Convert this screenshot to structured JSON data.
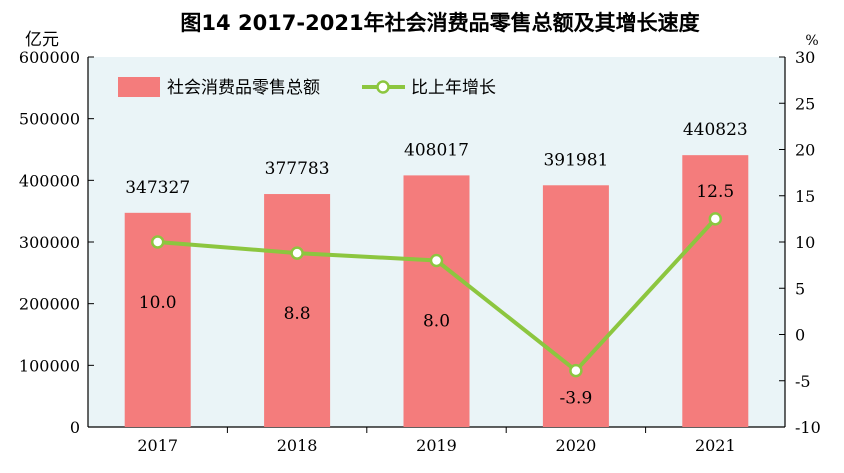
{
  "chart_data": {
    "type": "bar+line",
    "title": "图14   2017-2021年社会消费品零售总额及其增长速度",
    "categories": [
      "2017",
      "2018",
      "2019",
      "2020",
      "2021"
    ],
    "series": [
      {
        "name": "社会消费品零售总额",
        "type": "bar",
        "axis": "left",
        "values": [
          347327,
          377783,
          408017,
          391981,
          440823
        ],
        "labels": [
          "347327",
          "377783",
          "408017",
          "391981",
          "440823"
        ]
      },
      {
        "name": "比上年增长",
        "type": "line",
        "axis": "right",
        "values": [
          10.0,
          8.8,
          8.0,
          -3.9,
          12.5
        ],
        "labels": [
          "10.0",
          "8.8",
          "8.0",
          "-3.9",
          "12.5"
        ]
      }
    ],
    "left_axis": {
      "unit": "亿元",
      "ylim": [
        0,
        600000
      ],
      "ticks": [
        "0",
        "100000",
        "200000",
        "300000",
        "400000",
        "500000",
        "600000"
      ]
    },
    "right_axis": {
      "unit": "%",
      "ylim": [
        -10,
        30
      ],
      "ticks": [
        "-10",
        "-5",
        "0",
        "5",
        "10",
        "15",
        "20",
        "25",
        "30"
      ]
    },
    "legend_position": "top-left",
    "grid": false,
    "colors": {
      "bar": "#f47c7c",
      "line": "#8cc63f",
      "plot_bg": "#eaf4f7",
      "axis": "#000000"
    }
  }
}
